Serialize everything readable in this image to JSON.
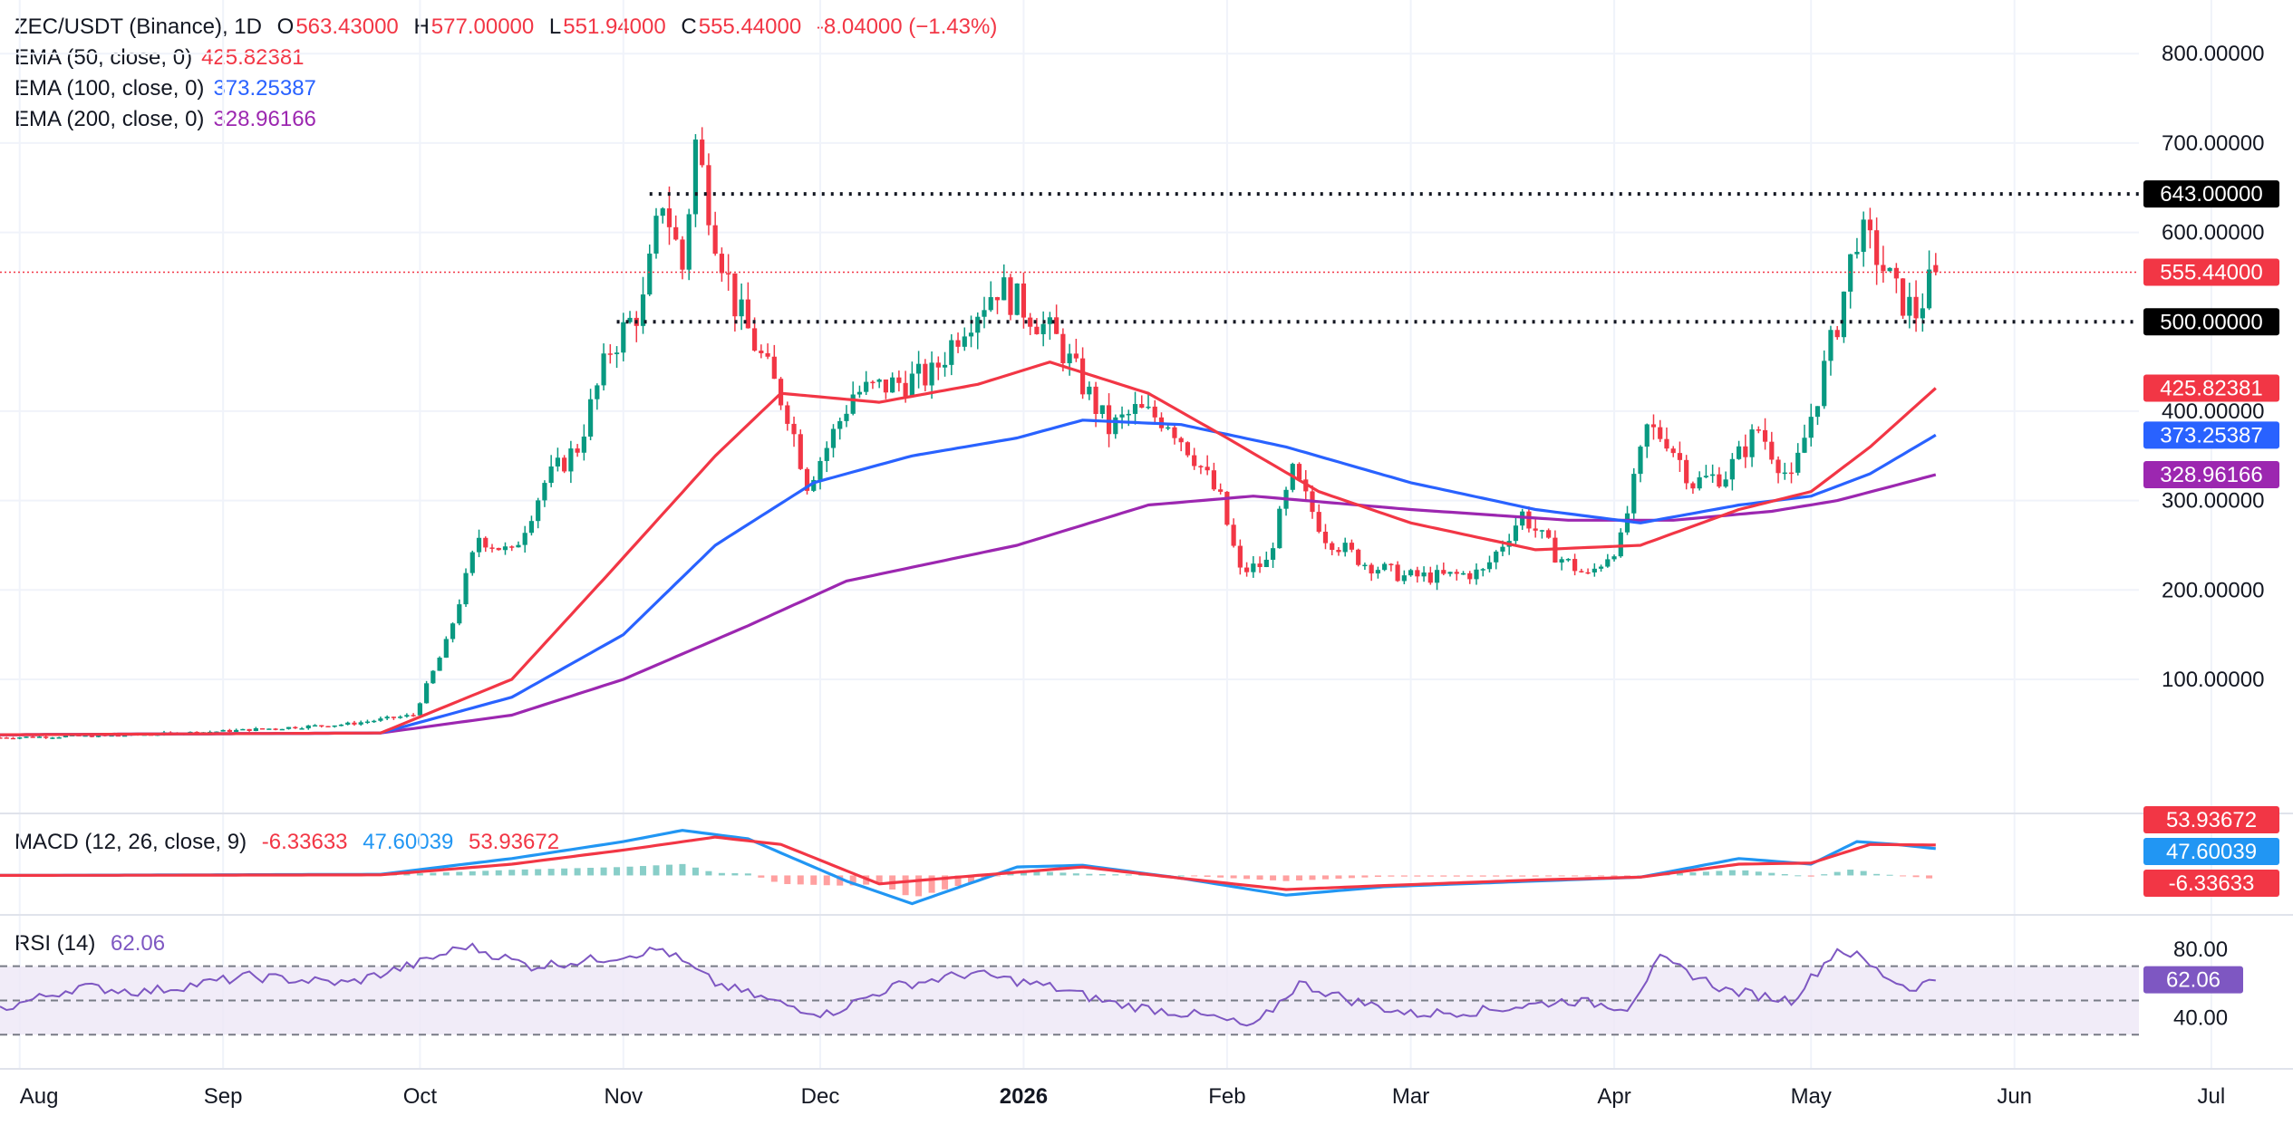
{
  "header": {
    "symbol": "ZEC/USDT (Binance), 1D",
    "o_label": "O",
    "o": "563.43000",
    "h_label": "H",
    "h": "577.00000",
    "l_label": "L",
    "l": "551.94000",
    "c_label": "C",
    "c": "555.44000",
    "change": "-8.04000 (−1.43%)"
  },
  "indicators": {
    "ema50": {
      "label": "EMA (50, close, 0)",
      "value": "425.82381",
      "color": "#f23645"
    },
    "ema100": {
      "label": "EMA (100, close, 0)",
      "value": "373.25387",
      "color": "#2962ff"
    },
    "ema200": {
      "label": "EMA (200, close, 0)",
      "value": "328.96166",
      "color": "#9c27b0"
    },
    "macd": {
      "label": "MACD (12, 26, close, 9)",
      "hist": "-6.33633",
      "macd": "47.60039",
      "signal": "53.93672"
    },
    "rsi": {
      "label": "RSI (14)",
      "value": "62.06",
      "color": "#7e57c2"
    }
  },
  "colors": {
    "up": "#089981",
    "down": "#f23645",
    "macd_line": "#2196f3",
    "signal_line": "#f23645",
    "rsi_band": "#ede7f6",
    "grid": "#f0f3fa"
  },
  "chart_data": [
    {
      "type": "candlestick",
      "title": "ZEC/USDT (Binance), 1D",
      "x_tick_labels": [
        "Aug",
        "Sep",
        "Oct",
        "Nov",
        "Dec",
        "2026",
        "Feb",
        "Mar",
        "Apr",
        "May",
        "Jun",
        "Jul"
      ],
      "y_ticks": [
        100,
        200,
        300,
        400,
        600,
        700,
        800
      ],
      "y_tick_labels": [
        "100.00000",
        "200.00000",
        "300.00000",
        "400.00000",
        "600.00000",
        "700.00000",
        "800.00000"
      ],
      "ylim": [
        -50,
        860
      ],
      "horizontal_levels": [
        {
          "value": 643,
          "label": "643.00000"
        },
        {
          "value": 500,
          "label": "500.00000"
        }
      ],
      "last_price": {
        "value": 555.44,
        "label": "555.44000"
      },
      "ema_tags": [
        {
          "value": 425.82,
          "label": "425.82381",
          "color": "#f23645"
        },
        {
          "value": 373.25,
          "label": "373.25387",
          "color": "#2962ff"
        },
        {
          "value": 328.96,
          "label": "328.96166",
          "color": "#9c27b0"
        }
      ],
      "price_keypoints": {
        "dates": [
          "2025-07-29",
          "2025-08-15",
          "2025-09-01",
          "2025-09-20",
          "2025-09-30",
          "2025-10-05",
          "2025-10-10",
          "2025-10-15",
          "2025-10-20",
          "2025-10-25",
          "2025-10-30",
          "2025-11-04",
          "2025-11-07",
          "2025-11-10",
          "2025-11-12",
          "2025-11-15",
          "2025-11-18",
          "2025-11-22",
          "2025-11-26",
          "2025-11-29",
          "2025-12-02",
          "2025-12-06",
          "2025-12-12",
          "2025-12-18",
          "2025-12-23",
          "2025-12-28",
          "2026-01-02",
          "2026-01-06",
          "2026-01-10",
          "2026-01-14",
          "2026-01-18",
          "2026-01-23",
          "2026-01-27",
          "2026-01-31",
          "2026-02-03",
          "2026-02-07",
          "2026-02-11",
          "2026-02-16",
          "2026-02-22",
          "2026-02-28",
          "2026-03-06",
          "2026-03-12",
          "2026-03-18",
          "2026-03-23",
          "2026-03-28",
          "2026-04-02",
          "2026-04-06",
          "2026-04-09",
          "2026-04-13",
          "2026-04-18",
          "2026-04-23",
          "2026-04-28",
          "2026-05-02",
          "2026-05-05",
          "2026-05-08",
          "2026-05-11",
          "2026-05-14",
          "2026-05-17",
          "2026-05-20"
        ],
        "close": [
          35,
          37,
          42,
          50,
          60,
          140,
          260,
          240,
          320,
          360,
          470,
          520,
          640,
          560,
          700,
          600,
          520,
          460,
          400,
          320,
          360,
          420,
          430,
          440,
          500,
          540,
          510,
          480,
          430,
          380,
          400,
          390,
          350,
          300,
          220,
          230,
          330,
          260,
          230,
          215,
          215,
          220,
          285,
          240,
          215,
          255,
          380,
          370,
          320,
          330,
          380,
          320,
          420,
          500,
          600,
          575,
          530,
          510,
          555.44
        ]
      },
      "ema50_keypoints": {
        "dates": [
          "2025-07-29",
          "2025-09-25",
          "2025-10-15",
          "2025-10-30",
          "2025-11-15",
          "2025-11-25",
          "2025-12-10",
          "2025-12-25",
          "2026-01-05",
          "2026-01-20",
          "2026-02-01",
          "2026-02-15",
          "2026-03-01",
          "2026-03-20",
          "2026-04-05",
          "2026-04-20",
          "2026-05-01",
          "2026-05-10",
          "2026-05-20"
        ],
        "values": [
          38,
          40,
          100,
          220,
          350,
          420,
          410,
          430,
          455,
          420,
          370,
          310,
          275,
          245,
          250,
          290,
          310,
          360,
          425.82
        ]
      },
      "ema100_keypoints": {
        "dates": [
          "2025-07-29",
          "2025-09-25",
          "2025-10-15",
          "2025-11-01",
          "2025-11-15",
          "2025-11-30",
          "2025-12-15",
          "2025-12-31",
          "2026-01-10",
          "2026-01-25",
          "2026-02-10",
          "2026-03-01",
          "2026-03-20",
          "2026-04-05",
          "2026-04-20",
          "2026-05-01",
          "2026-05-10",
          "2026-05-20"
        ],
        "values": [
          38,
          40,
          80,
          150,
          250,
          320,
          350,
          370,
          390,
          385,
          360,
          320,
          290,
          275,
          295,
          305,
          330,
          373.25
        ]
      },
      "ema200_keypoints": {
        "dates": [
          "2025-07-29",
          "2025-09-25",
          "2025-10-15",
          "2025-11-01",
          "2025-11-20",
          "2025-12-05",
          "2025-12-31",
          "2026-01-20",
          "2026-02-05",
          "2026-03-01",
          "2026-03-25",
          "2026-04-10",
          "2026-04-25",
          "2026-05-05",
          "2026-05-20"
        ],
        "values": [
          38,
          40,
          60,
          100,
          160,
          210,
          250,
          295,
          305,
          290,
          278,
          278,
          288,
          300,
          328.96
        ]
      }
    },
    {
      "type": "line",
      "title": "MACD (12, 26, close, 9)",
      "series": [
        {
          "name": "MACD",
          "dates": [
            "2025-07-29",
            "2025-09-25",
            "2025-10-15",
            "2025-11-01",
            "2025-11-10",
            "2025-11-20",
            "2025-12-05",
            "2025-12-15",
            "2025-12-31",
            "2026-01-10",
            "2026-01-25",
            "2026-02-10",
            "2026-02-25",
            "2026-03-20",
            "2026-04-05",
            "2026-04-20",
            "2026-05-01",
            "2026-05-08",
            "2026-05-14",
            "2026-05-20"
          ],
          "values": [
            0,
            2,
            30,
            60,
            80,
            65,
            -10,
            -50,
            15,
            18,
            -5,
            -35,
            -20,
            -10,
            -3,
            30,
            20,
            60,
            55,
            47.6
          ]
        },
        {
          "name": "Signal",
          "dates": [
            "2025-07-29",
            "2025-09-25",
            "2025-10-15",
            "2025-11-01",
            "2025-11-15",
            "2025-11-25",
            "2025-12-10",
            "2025-12-25",
            "2026-01-10",
            "2026-01-25",
            "2026-02-10",
            "2026-02-25",
            "2026-03-20",
            "2026-04-05",
            "2026-04-20",
            "2026-05-01",
            "2026-05-10",
            "2026-05-20"
          ],
          "values": [
            0,
            1,
            20,
            45,
            68,
            55,
            -15,
            0,
            15,
            -5,
            -25,
            -18,
            -8,
            -3,
            20,
            22,
            55,
            53.94
          ]
        }
      ],
      "ylim": [
        -70,
        110
      ]
    },
    {
      "type": "line",
      "title": "RSI (14)",
      "series": [
        {
          "name": "RSI",
          "dates": [
            "2025-07-29",
            "2025-08-10",
            "2025-08-20",
            "2025-09-05",
            "2025-09-20",
            "2025-10-01",
            "2025-10-08",
            "2025-10-18",
            "2025-10-28",
            "2025-11-07",
            "2025-11-15",
            "2025-11-25",
            "2025-12-02",
            "2025-12-12",
            "2025-12-24",
            "2026-01-05",
            "2026-01-15",
            "2026-01-30",
            "2026-02-05",
            "2026-02-12",
            "2026-02-20",
            "2026-03-01",
            "2026-03-12",
            "2026-03-25",
            "2026-04-03",
            "2026-04-08",
            "2026-04-18",
            "2026-04-28",
            "2026-05-05",
            "2026-05-08",
            "2026-05-12",
            "2026-05-16",
            "2026-05-20"
          ],
          "values": [
            45,
            58,
            55,
            64,
            60,
            72,
            82,
            70,
            74,
            80,
            60,
            48,
            42,
            58,
            66,
            58,
            48,
            40,
            34,
            60,
            50,
            42,
            44,
            50,
            46,
            74,
            56,
            50,
            80,
            76,
            65,
            57,
            62.06
          ]
        }
      ],
      "levels": [
        30,
        50,
        70
      ],
      "y_ticks": [
        40,
        80
      ],
      "y_tick_labels": [
        "40.00",
        "80.00"
      ],
      "ylim": [
        10,
        100
      ]
    }
  ]
}
